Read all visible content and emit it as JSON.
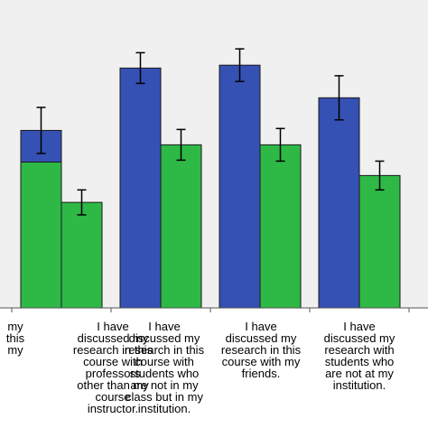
{
  "colors": {
    "plot_background": "#f0f0f0",
    "series_blue": "#3651b4",
    "series_green": "#2eb846",
    "error_bar": "#000000"
  },
  "chart_data": {
    "type": "bar",
    "categories": [
      "my\nthis\nmy",
      "I have\ndiscussed my\nresearch in this\ncourse with\nprofessors\nother than my\ncourse\ninstructor.",
      "I have\ndiscussed my\nresearch in this\ncourse with\nstudents who\nare not in my\nclass but in my\ninstitution.",
      "I have\ndiscussed my\nresearch in this\ncourse with my\nfriends.",
      "I have\ndiscussed my\nresearch with\nstudents who\nare not at my\ninstitution."
    ],
    "series": [
      {
        "values": [
          null,
          1.85,
          2.5,
          2.53,
          2.19
        ],
        "errors": [
          null,
          0.24,
          0.16,
          0.17,
          0.23
        ]
      },
      {
        "values": [
          1.52,
          1.1,
          1.7,
          1.7,
          1.38
        ],
        "errors": [
          null,
          0.13,
          0.16,
          0.17,
          0.15
        ]
      }
    ],
    "ylim": [
      0,
      3.2
    ],
    "grid": false,
    "legend": "none"
  }
}
